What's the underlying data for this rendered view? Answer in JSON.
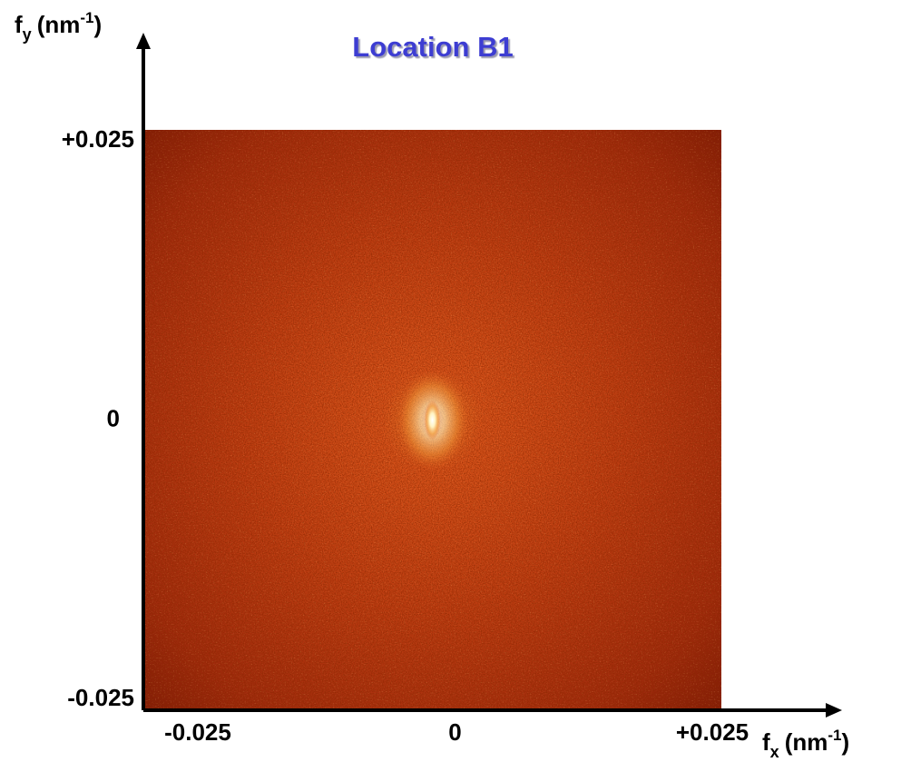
{
  "chart_data": {
    "type": "image",
    "title": "Location  B1",
    "x_label": {
      "base": "f",
      "sub": "x",
      "unit": "(nm",
      "sup": "-1",
      "close": ")"
    },
    "y_label": {
      "base": "f",
      "sub": "y",
      "unit": "(nm",
      "sup": "-1",
      "close": ")"
    },
    "xlim": [
      -0.025,
      0.025
    ],
    "ylim": [
      -0.025,
      0.025
    ],
    "xticks": [
      -0.025,
      0,
      {
        "value": 0.025,
        "label": "+0.025"
      }
    ],
    "yticks": [
      -0.025,
      0,
      {
        "value": 0.025,
        "label": "+0.025"
      }
    ]
  }
}
